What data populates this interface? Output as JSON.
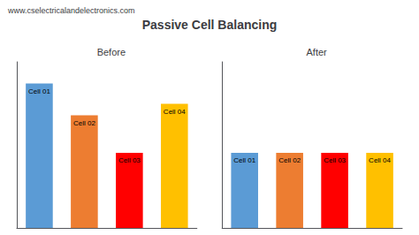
{
  "chart_data": [
    {
      "type": "bar",
      "title": "Passive Cell Balancing",
      "subtitle": "Before",
      "annotations": [
        "www.cselectricalandelectronics.com"
      ],
      "categories": [
        "Cell 01",
        "Cell 02",
        "Cell 03",
        "Cell 04"
      ],
      "values": [
        1.0,
        0.78,
        0.52,
        0.86
      ],
      "colors": [
        "#5B9BD5",
        "#ED7D31",
        "#FF0000",
        "#FFC000"
      ],
      "ylim": [
        0,
        1.15
      ],
      "grid": false,
      "tick_labels": false
    },
    {
      "type": "bar",
      "subtitle": "After",
      "categories": [
        "Cell 01",
        "Cell 02",
        "Cell 03",
        "Cell 04"
      ],
      "values": [
        0.52,
        0.52,
        0.52,
        0.52
      ],
      "colors": [
        "#5B9BD5",
        "#ED7D31",
        "#FF0000",
        "#FFC000"
      ],
      "ylim": [
        0,
        1.15
      ],
      "grid": false,
      "tick_labels": false
    }
  ]
}
